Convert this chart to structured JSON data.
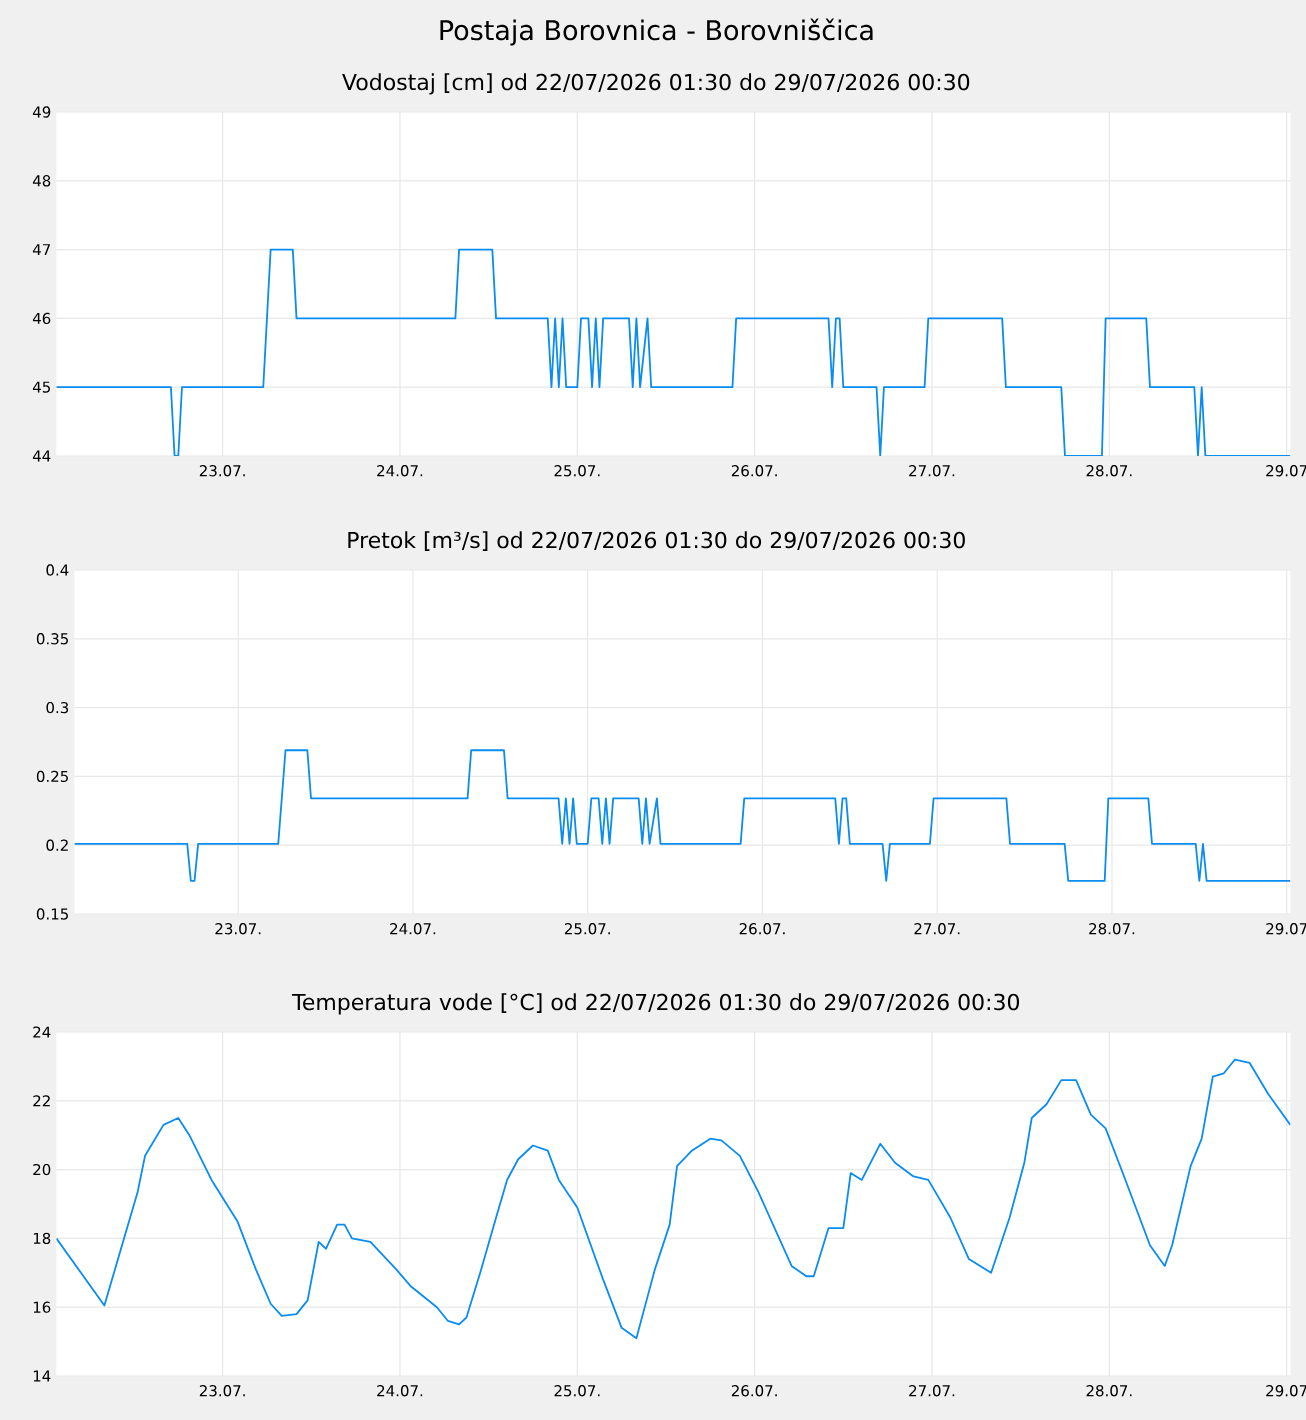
{
  "chart_data": [
    {
      "type": "line",
      "title": "Postaja Borovnica - Borovniščica",
      "subtitle": "Vodostaj [cm] od 22/07/2026 01:30 do 29/07/2026 00:30",
      "color": "#0a8cf0",
      "grid": true,
      "x": [
        "2026-07-22T01:30",
        "2026-07-22T17:00",
        "2026-07-22T17:30",
        "2026-07-22T18:00",
        "2026-07-22T18:30",
        "2026-07-23T05:30",
        "2026-07-23T06:30",
        "2026-07-23T09:30",
        "2026-07-23T10:00",
        "2026-07-24T07:30",
        "2026-07-24T08:00",
        "2026-07-24T12:30",
        "2026-07-24T13:00",
        "2026-07-24T20:00",
        "2026-07-24T20:30",
        "2026-07-24T21:00",
        "2026-07-24T21:30",
        "2026-07-24T22:00",
        "2026-07-24T22:30",
        "2026-07-25T00:00",
        "2026-07-25T00:30",
        "2026-07-25T01:30",
        "2026-07-25T02:00",
        "2026-07-25T02:30",
        "2026-07-25T03:00",
        "2026-07-25T03:30",
        "2026-07-25T07:00",
        "2026-07-25T07:30",
        "2026-07-25T08:00",
        "2026-07-25T08:30",
        "2026-07-25T09:30",
        "2026-07-25T10:00",
        "2026-07-25T21:00",
        "2026-07-25T21:30",
        "2026-07-26T10:00",
        "2026-07-26T10:30",
        "2026-07-26T11:00",
        "2026-07-26T11:30",
        "2026-07-26T12:00",
        "2026-07-26T16:30",
        "2026-07-26T17:00",
        "2026-07-26T17:30",
        "2026-07-26T23:00",
        "2026-07-26T23:30",
        "2026-07-27T09:30",
        "2026-07-27T10:00",
        "2026-07-27T17:30",
        "2026-07-27T18:00",
        "2026-07-27T23:00",
        "2026-07-27T23:30",
        "2026-07-28T05:00",
        "2026-07-28T05:30",
        "2026-07-28T11:30",
        "2026-07-28T12:00",
        "2026-07-28T12:30",
        "2026-07-28T13:00",
        "2026-07-29T00:30"
      ],
      "values": [
        45,
        45,
        44,
        44,
        45,
        45,
        47,
        47,
        46,
        46,
        47,
        47,
        46,
        46,
        45,
        46,
        45,
        46,
        45,
        45,
        46,
        46,
        45,
        46,
        45,
        46,
        46,
        45,
        46,
        45,
        46,
        45,
        45,
        46,
        46,
        45,
        46,
        46,
        45,
        45,
        44,
        45,
        45,
        46,
        46,
        45,
        45,
        44,
        44,
        46,
        46,
        45,
        45,
        44,
        45,
        44,
        44
      ],
      "xlim": [
        "2026-07-22T01:30",
        "2026-07-29T00:30"
      ],
      "ylim": [
        44,
        49
      ],
      "yticks": [
        44,
        45,
        46,
        47,
        48,
        49
      ],
      "xticks": [
        {
          "value": "2026-07-23T00:00",
          "label": "23.07."
        },
        {
          "value": "2026-07-24T00:00",
          "label": "24.07."
        },
        {
          "value": "2026-07-25T00:00",
          "label": "25.07."
        },
        {
          "value": "2026-07-26T00:00",
          "label": "26.07."
        },
        {
          "value": "2026-07-27T00:00",
          "label": "27.07."
        },
        {
          "value": "2026-07-28T00:00",
          "label": "28.07."
        },
        {
          "value": "2026-07-29T00:00",
          "label": "29.07"
        }
      ]
    },
    {
      "type": "line",
      "title": "Pretok [m³/s] od 22/07/2026 01:30 do 29/07/2026 00:30",
      "color": "#0a8cf0",
      "grid": true,
      "x": [
        "2026-07-22T01:30",
        "2026-07-22T17:00",
        "2026-07-22T17:30",
        "2026-07-22T18:00",
        "2026-07-22T18:30",
        "2026-07-23T05:30",
        "2026-07-23T06:30",
        "2026-07-23T09:30",
        "2026-07-23T10:00",
        "2026-07-24T07:30",
        "2026-07-24T08:00",
        "2026-07-24T12:30",
        "2026-07-24T13:00",
        "2026-07-24T20:00",
        "2026-07-24T20:30",
        "2026-07-24T21:00",
        "2026-07-24T21:30",
        "2026-07-24T22:00",
        "2026-07-24T22:30",
        "2026-07-25T00:00",
        "2026-07-25T00:30",
        "2026-07-25T01:30",
        "2026-07-25T02:00",
        "2026-07-25T02:30",
        "2026-07-25T03:00",
        "2026-07-25T03:30",
        "2026-07-25T07:00",
        "2026-07-25T07:30",
        "2026-07-25T08:00",
        "2026-07-25T08:30",
        "2026-07-25T09:30",
        "2026-07-25T10:00",
        "2026-07-25T21:00",
        "2026-07-25T21:30",
        "2026-07-26T10:00",
        "2026-07-26T10:30",
        "2026-07-26T11:00",
        "2026-07-26T11:30",
        "2026-07-26T12:00",
        "2026-07-26T16:30",
        "2026-07-26T17:00",
        "2026-07-26T17:30",
        "2026-07-26T23:00",
        "2026-07-26T23:30",
        "2026-07-27T09:30",
        "2026-07-27T10:00",
        "2026-07-27T17:30",
        "2026-07-27T18:00",
        "2026-07-27T23:00",
        "2026-07-27T23:30",
        "2026-07-28T05:00",
        "2026-07-28T05:30",
        "2026-07-28T11:30",
        "2026-07-28T12:00",
        "2026-07-28T12:30",
        "2026-07-28T13:00",
        "2026-07-29T00:30"
      ],
      "values": [
        0.201,
        0.201,
        0.174,
        0.174,
        0.201,
        0.201,
        0.269,
        0.269,
        0.234,
        0.234,
        0.269,
        0.269,
        0.234,
        0.234,
        0.201,
        0.234,
        0.201,
        0.234,
        0.201,
        0.201,
        0.234,
        0.234,
        0.201,
        0.234,
        0.201,
        0.234,
        0.234,
        0.201,
        0.234,
        0.201,
        0.234,
        0.201,
        0.201,
        0.234,
        0.234,
        0.201,
        0.234,
        0.234,
        0.201,
        0.201,
        0.174,
        0.201,
        0.201,
        0.234,
        0.234,
        0.201,
        0.201,
        0.174,
        0.174,
        0.234,
        0.234,
        0.201,
        0.201,
        0.174,
        0.201,
        0.174,
        0.174
      ],
      "xlim": [
        "2026-07-22T01:30",
        "2026-07-29T00:30"
      ],
      "ylim": [
        0.15,
        0.4
      ],
      "yticks": [
        0.15,
        0.2,
        0.25,
        0.3,
        0.35,
        0.4
      ],
      "xticks": [
        {
          "value": "2026-07-23T00:00",
          "label": "23.07."
        },
        {
          "value": "2026-07-24T00:00",
          "label": "24.07."
        },
        {
          "value": "2026-07-25T00:00",
          "label": "25.07."
        },
        {
          "value": "2026-07-26T00:00",
          "label": "26.07."
        },
        {
          "value": "2026-07-27T00:00",
          "label": "27.07."
        },
        {
          "value": "2026-07-28T00:00",
          "label": "28.07."
        },
        {
          "value": "2026-07-29T00:00",
          "label": "29.07"
        }
      ]
    },
    {
      "type": "line",
      "title": "Temperatura vode [°C] od 22/07/2026 01:30 do 29/07/2026 00:30",
      "color": "#0a8cf0",
      "grid": true,
      "x": [
        "2026-07-22T01:30",
        "2026-07-22T08:00",
        "2026-07-22T12:30",
        "2026-07-22T13:30",
        "2026-07-22T16:00",
        "2026-07-22T18:00",
        "2026-07-22T19:30",
        "2026-07-22T22:30",
        "2026-07-23T02:00",
        "2026-07-23T04:30",
        "2026-07-23T06:30",
        "2026-07-23T08:00",
        "2026-07-23T10:00",
        "2026-07-23T11:30",
        "2026-07-23T13:00",
        "2026-07-23T14:00",
        "2026-07-23T15:30",
        "2026-07-23T16:30",
        "2026-07-23T17:30",
        "2026-07-23T20:00",
        "2026-07-23T23:30",
        "2026-07-24T01:30",
        "2026-07-24T05:00",
        "2026-07-24T06:30",
        "2026-07-24T08:00",
        "2026-07-24T09:00",
        "2026-07-24T11:00",
        "2026-07-24T13:00",
        "2026-07-24T14:30",
        "2026-07-24T16:00",
        "2026-07-24T18:00",
        "2026-07-24T20:00",
        "2026-07-24T21:30",
        "2026-07-25T00:00",
        "2026-07-25T03:30",
        "2026-07-25T06:00",
        "2026-07-25T08:00",
        "2026-07-25T09:00",
        "2026-07-25T10:30",
        "2026-07-25T12:30",
        "2026-07-25T13:30",
        "2026-07-25T15:30",
        "2026-07-25T18:00",
        "2026-07-25T19:30",
        "2026-07-25T22:00",
        "2026-07-26T00:30",
        "2026-07-26T05:00",
        "2026-07-26T07:00",
        "2026-07-26T08:00",
        "2026-07-26T10:00",
        "2026-07-26T12:00",
        "2026-07-26T13:00",
        "2026-07-26T14:30",
        "2026-07-26T17:00",
        "2026-07-26T19:00",
        "2026-07-26T21:30",
        "2026-07-26T23:30",
        "2026-07-27T02:30",
        "2026-07-27T05:00",
        "2026-07-27T08:00",
        "2026-07-27T10:30",
        "2026-07-27T12:30",
        "2026-07-27T13:30",
        "2026-07-27T15:30",
        "2026-07-27T17:30",
        "2026-07-27T19:30",
        "2026-07-27T21:30",
        "2026-07-27T23:30",
        "2026-07-28T02:00",
        "2026-07-28T05:30",
        "2026-07-28T07:30",
        "2026-07-28T08:30",
        "2026-07-28T11:00",
        "2026-07-28T12:30",
        "2026-07-28T14:00",
        "2026-07-28T15:30",
        "2026-07-28T17:00",
        "2026-07-28T19:00",
        "2026-07-28T21:30",
        "2026-07-29T00:30"
      ],
      "values": [
        18.0,
        16.05,
        19.35,
        20.4,
        21.3,
        21.5,
        21.0,
        19.7,
        18.5,
        17.1,
        16.1,
        15.75,
        15.8,
        16.2,
        17.9,
        17.7,
        18.4,
        18.4,
        18.0,
        17.9,
        17.1,
        16.6,
        16.0,
        15.6,
        15.5,
        15.7,
        17.1,
        18.6,
        19.7,
        20.3,
        20.7,
        20.55,
        19.7,
        18.9,
        16.8,
        15.4,
        15.1,
        15.9,
        17.1,
        18.4,
        20.1,
        20.55,
        20.9,
        20.85,
        20.4,
        19.35,
        17.2,
        16.9,
        16.9,
        18.3,
        18.3,
        19.9,
        19.7,
        20.75,
        20.2,
        19.8,
        19.7,
        18.6,
        17.4,
        17.0,
        18.6,
        20.2,
        21.5,
        21.9,
        22.6,
        22.6,
        21.6,
        21.2,
        19.8,
        17.8,
        17.2,
        17.8,
        20.1,
        20.9,
        22.7,
        22.8,
        23.2,
        23.1,
        22.2,
        21.3
      ],
      "xlim": [
        "2026-07-22T01:30",
        "2026-07-29T00:30"
      ],
      "ylim": [
        14,
        24
      ],
      "yticks": [
        14,
        16,
        18,
        20,
        22,
        24
      ],
      "xticks": [
        {
          "value": "2026-07-23T00:00",
          "label": "23.07."
        },
        {
          "value": "2026-07-24T00:00",
          "label": "24.07."
        },
        {
          "value": "2026-07-25T00:00",
          "label": "25.07."
        },
        {
          "value": "2026-07-26T00:00",
          "label": "26.07."
        },
        {
          "value": "2026-07-27T00:00",
          "label": "27.07."
        },
        {
          "value": "2026-07-28T00:00",
          "label": "28.07."
        },
        {
          "value": "2026-07-29T00:00",
          "label": "29.07"
        }
      ]
    }
  ]
}
